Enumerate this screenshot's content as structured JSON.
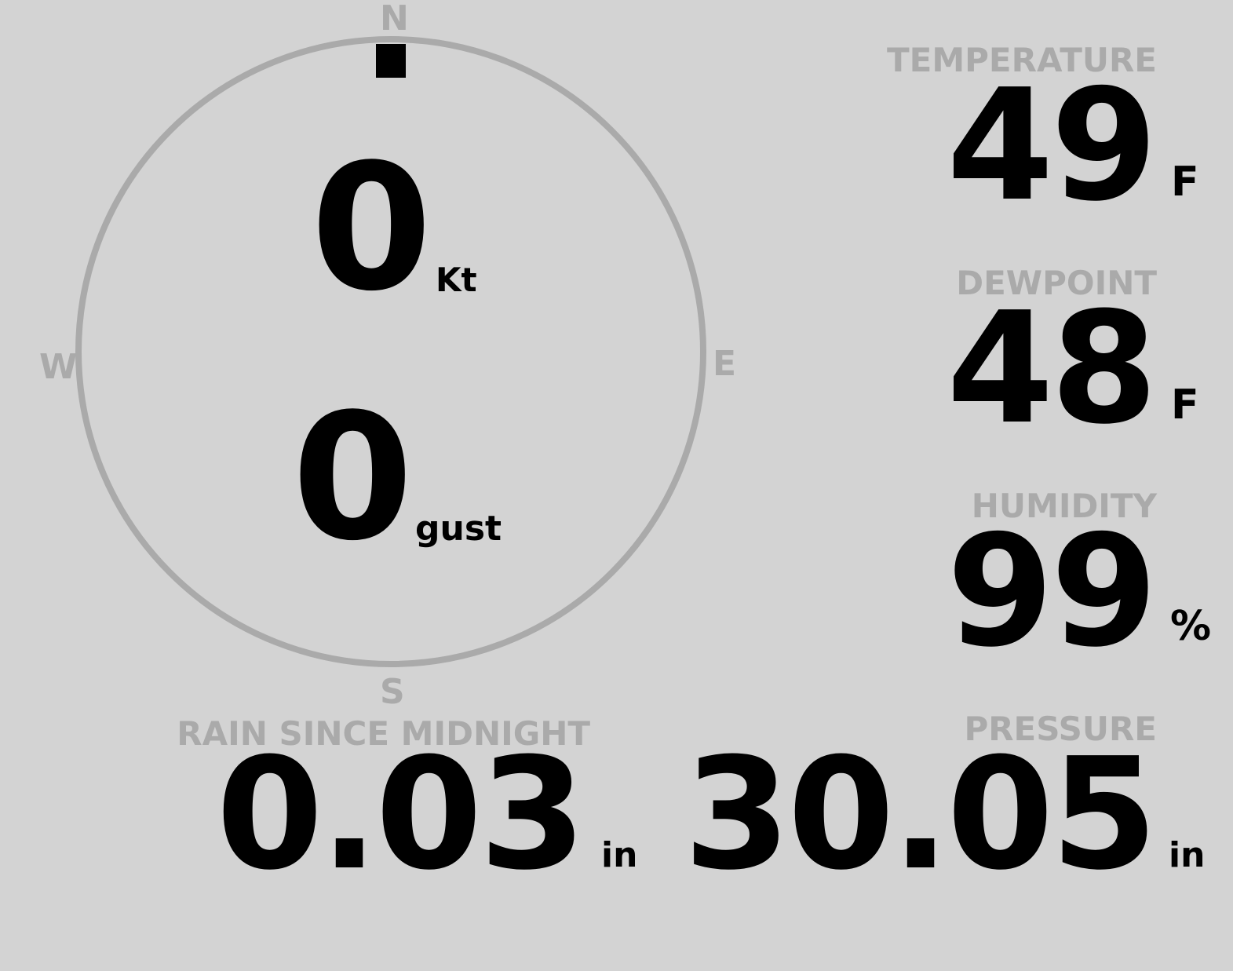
{
  "wind": {
    "speed": "0",
    "speed_unit": "Kt",
    "gust": "0",
    "gust_unit": "gust",
    "direction_deg": 0,
    "compass": {
      "n": "N",
      "e": "E",
      "s": "S",
      "w": "W"
    }
  },
  "temperature": {
    "label": "TEMPERATURE",
    "value": "49",
    "unit": "F"
  },
  "dewpoint": {
    "label": "DEWPOINT",
    "value": "48",
    "unit": "F"
  },
  "humidity": {
    "label": "HUMIDITY",
    "value": "99",
    "unit": "%"
  },
  "rain": {
    "label": "RAIN SINCE MIDNIGHT",
    "value": "0.03",
    "unit": "in"
  },
  "pressure": {
    "label": "PRESSURE",
    "value": "30.05",
    "unit": "in"
  },
  "colors": {
    "background": "#d3d3d3",
    "label": "#aaaaaa",
    "value": "#000000"
  }
}
